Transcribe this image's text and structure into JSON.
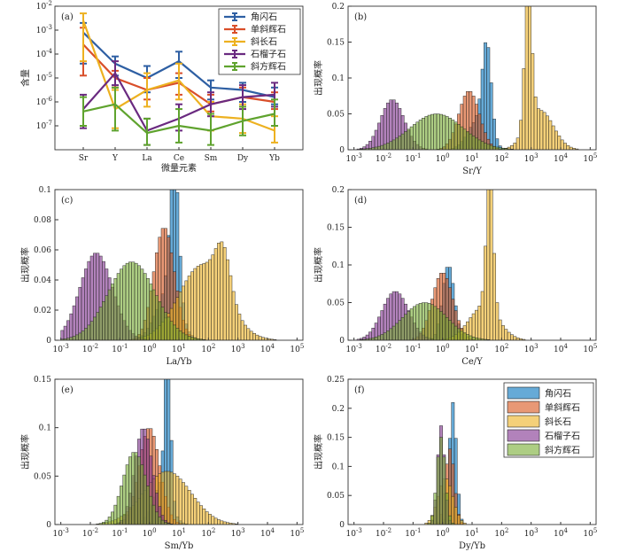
{
  "chart_data": [
    {
      "id": "a",
      "type": "line",
      "panel_label": "(a)",
      "xlabel": "微量元素",
      "ylabel": "含量",
      "categories": [
        "Sr",
        "Y",
        "La",
        "Ce",
        "Sm",
        "Dy",
        "Yb"
      ],
      "ylim_exp": [
        -8,
        -2
      ],
      "y_tick_labels": [
        "10^-7",
        "10^-6",
        "10^-5",
        "10^-4",
        "10^-3",
        "10^-2"
      ],
      "y_tick_exps": [
        -7,
        -6,
        -5,
        -4,
        -3,
        -2
      ],
      "legend_position": "top-right",
      "series": [
        {
          "name": "角闪石",
          "color": "#2e5fa3",
          "log_values": [
            -3.1,
            -4.4,
            -5.0,
            -4.3,
            -5.4,
            -5.5,
            -5.8
          ],
          "err_low": [
            -4.4,
            -4.9,
            -5.6,
            -5.0,
            -5.9,
            -6.0,
            -6.1
          ],
          "err_high": [
            -2.7,
            -4.1,
            -4.5,
            -3.9,
            -5.1,
            -5.2,
            -5.4
          ]
        },
        {
          "name": "单斜辉石",
          "color": "#d94f2a",
          "log_values": [
            -3.6,
            -5.0,
            -5.5,
            -5.2,
            -6.1,
            -5.8,
            -6.0
          ],
          "err_low": [
            -4.9,
            -5.4,
            -5.9,
            -5.7,
            -6.4,
            -6.2,
            -6.3
          ],
          "err_high": [
            -2.9,
            -4.7,
            -5.0,
            -4.8,
            -5.7,
            -5.4,
            -5.6
          ]
        },
        {
          "name": "斜长石",
          "color": "#edb120",
          "log_values": [
            -2.6,
            -6.3,
            -5.5,
            -5.1,
            -6.6,
            -6.7,
            -7.2
          ],
          "err_low": [
            -4.3,
            -7.1,
            -6.2,
            -5.9,
            -7.2,
            -7.3,
            -7.7
          ],
          "err_high": [
            -2.3,
            -5.5,
            -4.8,
            -4.4,
            -6.0,
            -6.1,
            -6.6
          ]
        },
        {
          "name": "石榴子石",
          "color": "#6a2a80",
          "log_values": [
            -6.3,
            -4.8,
            -7.2,
            -6.7,
            -6.1,
            -5.8,
            -5.7
          ],
          "err_low": [
            -7.1,
            -5.3,
            -7.8,
            -7.2,
            -6.6,
            -6.3,
            -6.2
          ],
          "err_high": [
            -5.7,
            -4.3,
            -6.7,
            -6.1,
            -5.6,
            -5.3,
            -5.2
          ]
        },
        {
          "name": "斜方辉石",
          "color": "#5fa32e",
          "log_values": [
            -6.4,
            -6.1,
            -7.3,
            -7.0,
            -7.2,
            -6.8,
            -6.5
          ],
          "err_low": [
            -7.0,
            -7.2,
            -7.8,
            -7.7,
            -7.8,
            -7.4,
            -7.0
          ],
          "err_high": [
            -5.8,
            -5.4,
            -6.7,
            -6.3,
            -6.5,
            -6.2,
            -5.9
          ]
        }
      ]
    },
    {
      "id": "b",
      "type": "histogram",
      "panel_label": "(b)",
      "xlabel": "Sr/Y",
      "ylabel": "出现概率",
      "ylim": [
        0,
        0.2
      ],
      "y_ticks": [
        0,
        0.05,
        0.1,
        0.15,
        0.2
      ],
      "y_tick_labels": [
        "0",
        "0.05",
        "0.1",
        "0.15",
        "0.2"
      ],
      "x_tick_labels": [
        "10^-3",
        "10^-2",
        "10^-1",
        "10^0",
        "10^1",
        "10^2",
        "10^3",
        "10^4",
        "10^5"
      ],
      "x_tick_exps": [
        -3,
        -2,
        -1,
        0,
        1,
        2,
        3,
        4,
        5
      ],
      "xlim_exp": [
        -3.2,
        5.2
      ],
      "bin_width_log": 0.1,
      "series": [
        {
          "name": "角闪石",
          "color": "#0072bd",
          "peaks": [
            {
              "center": 1.5,
              "sigma": 0.15,
              "height": 0.125
            },
            {
              "center": 1.2,
              "sigma": 0.35,
              "height": 0.04
            }
          ]
        },
        {
          "name": "单斜辉石",
          "color": "#d95319",
          "peaks": [
            {
              "center": 0.9,
              "sigma": 0.35,
              "height": 0.082
            }
          ]
        },
        {
          "name": "斜长石",
          "color": "#edb120",
          "peaks": [
            {
              "center": 2.9,
              "sigma": 0.12,
              "height": 0.19
            },
            {
              "center": 3.3,
              "sigma": 0.45,
              "height": 0.055
            }
          ]
        },
        {
          "name": "石榴子石",
          "color": "#7e2f8e",
          "peaks": [
            {
              "center": -1.7,
              "sigma": 0.4,
              "height": 0.07
            }
          ]
        },
        {
          "name": "斜方辉石",
          "color": "#77ac30",
          "peaks": [
            {
              "center": -0.2,
              "sigma": 0.9,
              "height": 0.05
            }
          ]
        }
      ]
    },
    {
      "id": "c",
      "type": "histogram",
      "panel_label": "(c)",
      "xlabel": "La/Yb",
      "ylabel": "出现概率",
      "ylim": [
        0,
        0.1
      ],
      "y_ticks": [
        0,
        0.02,
        0.04,
        0.06,
        0.08,
        0.1
      ],
      "y_tick_labels": [
        "0",
        "0.02",
        "0.04",
        "0.06",
        "0.08",
        "0.1"
      ],
      "x_tick_labels": [
        "10^-3",
        "10^-2",
        "10^-1",
        "10^0",
        "10^1",
        "10^2",
        "10^3",
        "10^4",
        "10^5"
      ],
      "x_tick_exps": [
        -3,
        -2,
        -1,
        0,
        1,
        2,
        3,
        4,
        5
      ],
      "xlim_exp": [
        -3.2,
        5.2
      ],
      "bin_width_log": 0.1,
      "series": [
        {
          "name": "角闪石",
          "color": "#0072bd",
          "peaks": [
            {
              "center": 0.85,
              "sigma": 0.15,
              "height": 0.097
            },
            {
              "center": 0.6,
              "sigma": 0.4,
              "height": 0.03
            }
          ]
        },
        {
          "name": "单斜辉石",
          "color": "#d95319",
          "peaks": [
            {
              "center": 0.5,
              "sigma": 0.35,
              "height": 0.075
            }
          ]
        },
        {
          "name": "斜长石",
          "color": "#edb120",
          "peaks": [
            {
              "center": 1.8,
              "sigma": 0.8,
              "height": 0.05
            },
            {
              "center": 2.5,
              "sigma": 0.25,
              "height": 0.03
            }
          ]
        },
        {
          "name": "石榴子石",
          "color": "#7e2f8e",
          "peaks": [
            {
              "center": -1.8,
              "sigma": 0.55,
              "height": 0.058
            }
          ]
        },
        {
          "name": "斜方辉石",
          "color": "#77ac30",
          "peaks": [
            {
              "center": -0.6,
              "sigma": 0.8,
              "height": 0.052
            }
          ]
        }
      ]
    },
    {
      "id": "d",
      "type": "histogram",
      "panel_label": "(d)",
      "xlabel": "Ce/Y",
      "ylabel": "出现概率",
      "ylim": [
        0,
        0.2
      ],
      "y_ticks": [
        0,
        0.05,
        0.1,
        0.15,
        0.2
      ],
      "y_tick_labels": [
        "0",
        "0.05",
        "0.1",
        "0.15",
        "0.2"
      ],
      "x_tick_labels": [
        "10^-3",
        "10^-2",
        "10^-1",
        "10^0",
        "10^1",
        "10^2",
        "10^3",
        "10^4",
        "10^5"
      ],
      "x_tick_exps": [
        -3,
        -2,
        -1,
        0,
        1,
        2,
        3,
        4,
        5
      ],
      "xlim_exp": [
        -3.2,
        5.2
      ],
      "bin_width_log": 0.1,
      "series": [
        {
          "name": "角闪石",
          "color": "#0072bd",
          "peaks": [
            {
              "center": 0.2,
              "sigma": 0.2,
              "height": 0.1
            }
          ]
        },
        {
          "name": "单斜辉石",
          "color": "#d95319",
          "peaks": [
            {
              "center": 0.0,
              "sigma": 0.35,
              "height": 0.09
            }
          ]
        },
        {
          "name": "斜长石",
          "color": "#edb120",
          "peaks": [
            {
              "center": 1.6,
              "sigma": 0.12,
              "height": 0.175
            },
            {
              "center": 1.4,
              "sigma": 0.5,
              "height": 0.045
            }
          ]
        },
        {
          "name": "石榴子石",
          "color": "#7e2f8e",
          "peaks": [
            {
              "center": -1.6,
              "sigma": 0.45,
              "height": 0.065
            }
          ]
        },
        {
          "name": "斜方辉石",
          "color": "#77ac30",
          "peaks": [
            {
              "center": -0.6,
              "sigma": 0.75,
              "height": 0.05
            }
          ]
        }
      ]
    },
    {
      "id": "e",
      "type": "histogram",
      "panel_label": "(e)",
      "xlabel": "Sm/Yb",
      "ylabel": "出现概率",
      "ylim": [
        0,
        0.15
      ],
      "y_ticks": [
        0,
        0.05,
        0.1,
        0.15
      ],
      "y_tick_labels": [
        "0",
        "0.05",
        "0.1",
        "0.15"
      ],
      "x_tick_labels": [
        "10^-3",
        "10^-2",
        "10^-1",
        "10^0",
        "10^1",
        "10^2",
        "10^3",
        "10^4",
        "10^5"
      ],
      "x_tick_exps": [
        -3,
        -2,
        -1,
        0,
        1,
        2,
        3,
        4,
        5
      ],
      "xlim_exp": [
        -3.2,
        5.2
      ],
      "bin_width_log": 0.1,
      "series": [
        {
          "name": "角闪石",
          "color": "#0072bd",
          "peaks": [
            {
              "center": 0.62,
              "sigma": 0.1,
              "height": 0.155
            },
            {
              "center": 0.4,
              "sigma": 0.3,
              "height": 0.04
            }
          ]
        },
        {
          "name": "单斜辉石",
          "color": "#d95319",
          "peaks": [
            {
              "center": 0.0,
              "sigma": 0.35,
              "height": 0.1
            }
          ]
        },
        {
          "name": "斜长石",
          "color": "#edb120",
          "peaks": [
            {
              "center": 0.6,
              "sigma": 0.8,
              "height": 0.055
            }
          ]
        },
        {
          "name": "石榴子石",
          "color": "#7e2f8e",
          "peaks": [
            {
              "center": -0.2,
              "sigma": 0.3,
              "height": 0.1
            }
          ]
        },
        {
          "name": "斜方辉石",
          "color": "#77ac30",
          "peaks": [
            {
              "center": -0.5,
              "sigma": 0.4,
              "height": 0.075
            }
          ]
        }
      ]
    },
    {
      "id": "f",
      "type": "histogram",
      "panel_label": "(f)",
      "xlabel": "Dy/Yb",
      "ylabel": "出现概率",
      "ylim": [
        0,
        0.25
      ],
      "y_ticks": [
        0,
        0.05,
        0.1,
        0.15,
        0.2,
        0.25
      ],
      "y_tick_labels": [
        "0",
        "0.05",
        "0.1",
        "0.15",
        "0.2",
        "0.25"
      ],
      "x_tick_labels": [
        "10^-3",
        "10^-2",
        "10^-1",
        "10^0",
        "10^1",
        "10^2",
        "10^3",
        "10^4",
        "10^5"
      ],
      "x_tick_exps": [
        -3,
        -2,
        -1,
        0,
        1,
        2,
        3,
        4,
        5
      ],
      "xlim_exp": [
        -3.2,
        5.2
      ],
      "bin_width_log": 0.1,
      "legend_position": "top-right",
      "series": [
        {
          "name": "角闪石",
          "color": "#0072bd",
          "peaks": [
            {
              "center": 0.35,
              "sigma": 0.12,
              "height": 0.21
            }
          ]
        },
        {
          "name": "单斜辉石",
          "color": "#d95319",
          "peaks": [
            {
              "center": 0.25,
              "sigma": 0.15,
              "height": 0.13
            }
          ]
        },
        {
          "name": "斜长石",
          "color": "#edb120",
          "peaks": [
            {
              "center": 0.1,
              "sigma": 0.25,
              "height": 0.08
            }
          ]
        },
        {
          "name": "石榴子石",
          "color": "#7e2f8e",
          "peaks": [
            {
              "center": -0.05,
              "sigma": 0.12,
              "height": 0.17
            }
          ]
        },
        {
          "name": "斜方辉石",
          "color": "#77ac30",
          "peaks": [
            {
              "center": -0.05,
              "sigma": 0.14,
              "height": 0.15
            }
          ]
        }
      ]
    }
  ]
}
